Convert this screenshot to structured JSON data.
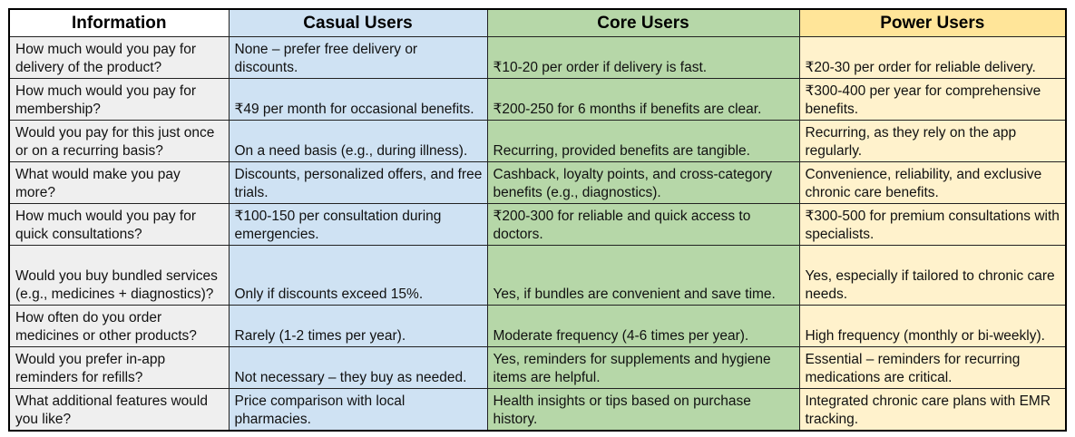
{
  "table": {
    "header": [
      "Information",
      "Casual Users",
      "Core Users",
      "Power Users"
    ],
    "rows": [
      [
        "How much would you pay for delivery of the product?",
        "None – prefer free delivery or discounts.",
        "₹10-20 per order if delivery is fast.",
        "₹20-30 per order for reliable delivery."
      ],
      [
        "How much would you pay for membership?",
        "₹49 per month for occasional benefits.",
        "₹200-250 for 6 months if benefits are clear.",
        "₹300-400 per year for comprehensive benefits."
      ],
      [
        "Would you pay for this just once or on a recurring basis?",
        "On a need basis (e.g., during illness).",
        "Recurring, provided benefits are tangible.",
        "Recurring, as they rely on the app regularly."
      ],
      [
        "What would make you pay more?",
        "Discounts, personalized offers, and free trials.",
        "Cashback, loyalty points, and cross-category benefits (e.g., diagnostics).",
        "Convenience, reliability, and exclusive chronic care benefits."
      ],
      [
        "How much would you pay for quick consultations?",
        "₹100-150 per consultation during emergencies.",
        "₹200-300 for reliable and quick access to doctors.",
        "₹300-500 for premium consultations with specialists."
      ],
      [
        "Would you buy bundled services (e.g., medicines + diagnostics)?",
        "Only if discounts exceed 15%.",
        "Yes, if bundles are convenient and save time.",
        "Yes, especially if tailored to chronic care needs."
      ],
      [
        "How often do you order medicines or other products?",
        "Rarely (1-2 times per year).",
        "Moderate frequency (4-6 times per year).",
        "High frequency (monthly or bi-weekly)."
      ],
      [
        "Would you prefer in-app reminders for refills?",
        "Not necessary – they buy as needed.",
        "Yes, reminders for supplements and hygiene items are helpful.",
        "Essential – reminders for recurring medications are critical."
      ],
      [
        "What additional features would you like?",
        "Price comparison with local pharmacies.",
        "Health insights or tips based on purchase history.",
        "Integrated chronic care plans with EMR tracking."
      ]
    ]
  }
}
